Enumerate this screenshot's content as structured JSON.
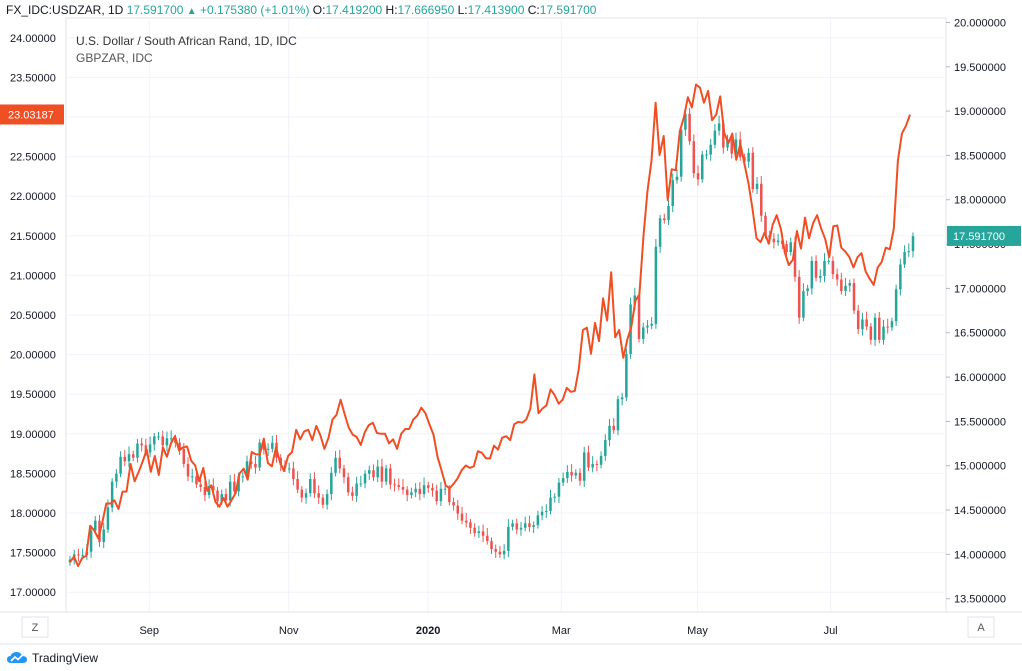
{
  "header": {
    "symbol": "FX_IDC:USDZAR, 1D",
    "last": "17.591700",
    "change": "+0.175380 (+1.01%)",
    "o_label": "O:",
    "o_val": "17.419200",
    "h_label": "H:",
    "h_val": "17.666950",
    "l_label": "L:",
    "l_val": "17.413900",
    "c_label": "C:",
    "c_val": "17.591700"
  },
  "legend": {
    "line1": "U.S. Dollar / South African Rand, 1D, IDC",
    "line2": "GBPZAR, IDC"
  },
  "footer": {
    "brand": "TradingView"
  },
  "buttons": {
    "left": "Z",
    "right": "A"
  },
  "chart_data": {
    "type": "line",
    "series": [
      {
        "name": "GBPZAR",
        "axis": "left",
        "color": "#f04e23",
        "values": [
          17.38,
          17.45,
          17.33,
          17.43,
          17.46,
          17.84,
          17.78,
          17.68,
          17.88,
          18.12,
          18.12,
          18.16,
          18.05,
          18.27,
          18.27,
          18.62,
          18.4,
          18.52,
          18.65,
          18.8,
          18.52,
          18.72,
          18.48,
          18.83,
          18.71,
          18.88,
          18.97,
          18.79,
          18.83,
          18.84,
          18.66,
          18.6,
          18.4,
          18.57,
          18.28,
          18.35,
          18.14,
          18.08,
          18.19,
          18.08,
          18.16,
          18.25,
          18.5,
          18.56,
          18.42,
          18.77,
          18.74,
          18.74,
          18.94,
          18.63,
          18.59,
          18.83,
          18.64,
          18.53,
          18.72,
          18.77,
          19.05,
          18.93,
          19.03,
          19.05,
          18.92,
          19.1,
          18.98,
          18.81,
          18.95,
          19.18,
          19.24,
          19.43,
          19.25,
          19.08,
          18.99,
          18.96,
          18.86,
          19.02,
          19.11,
          19.14,
          19.01,
          19.0,
          19.0,
          18.88,
          18.93,
          18.81,
          19.0,
          19.06,
          19.06,
          19.18,
          19.23,
          19.33,
          19.26,
          19.12,
          18.99,
          18.71,
          18.54,
          18.35,
          18.31,
          18.37,
          18.44,
          18.54,
          18.6,
          18.57,
          18.59,
          18.78,
          18.76,
          18.69,
          18.69,
          18.85,
          18.8,
          18.95,
          18.97,
          18.92,
          19.12,
          19.15,
          19.14,
          19.18,
          19.32,
          19.75,
          19.26,
          19.32,
          19.36,
          19.56,
          19.49,
          19.38,
          19.43,
          19.58,
          19.53,
          19.54,
          19.82,
          20.31,
          20.34,
          20.01,
          20.4,
          20.17,
          20.71,
          20.43,
          21.04,
          20.22,
          20.31,
          19.96,
          20.19,
          20.35,
          20.68,
          20.76,
          21.5,
          22.07,
          22.45,
          23.18,
          22.52,
          22.76,
          21.95,
          22.34,
          22.33,
          22.82,
          22.99,
          23.25,
          23.12,
          23.41,
          23.37,
          23.18,
          23.33,
          22.96,
          23.03,
          23.26,
          22.8,
          22.67,
          22.79,
          22.46,
          22.66,
          22.41,
          22.16,
          21.84,
          21.47,
          21.42,
          21.54,
          21.4,
          21.64,
          21.76,
          21.59,
          21.29,
          21.13,
          21.2,
          21.56,
          21.34,
          21.73,
          21.47,
          21.66,
          21.76,
          21.59,
          21.46,
          21.23,
          21.62,
          21.63,
          21.35,
          21.3,
          21.23,
          21.1,
          21.23,
          21.28,
          21.05,
          20.96,
          20.88,
          21.1,
          21.17,
          21.35,
          21.33,
          21.59,
          22.45,
          22.79,
          22.89,
          23.03
        ],
        "start": "2019-07-29",
        "end": "2020-08-07"
      },
      {
        "name": "USDZAR",
        "axis": "right",
        "type": "candlestick",
        "color_up": "#26a69a",
        "color_down": "#ef5350",
        "closes": [
          13.94,
          14.0,
          13.99,
          13.99,
          14.03,
          14.27,
          14.38,
          14.14,
          14.28,
          14.53,
          14.82,
          14.91,
          15.1,
          15.05,
          15.13,
          15.09,
          15.25,
          15.23,
          15.15,
          15.24,
          15.33,
          15.33,
          15.23,
          15.31,
          15.31,
          15.26,
          15.19,
          15.02,
          14.88,
          14.88,
          14.79,
          14.76,
          14.67,
          14.77,
          14.72,
          14.6,
          14.68,
          14.61,
          14.82,
          14.71,
          14.88,
          14.88,
          15.05,
          15.02,
          14.98,
          15.26,
          15.18,
          15.19,
          15.26,
          15.09,
          15.01,
          14.97,
          14.97,
          14.85,
          14.73,
          14.64,
          14.69,
          14.85,
          14.69,
          14.64,
          14.56,
          14.68,
          14.92,
          15.09,
          14.97,
          14.87,
          14.7,
          14.66,
          14.8,
          14.8,
          14.91,
          14.95,
          14.87,
          14.99,
          14.82,
          14.97,
          14.79,
          14.78,
          14.76,
          14.73,
          14.67,
          14.7,
          14.74,
          14.68,
          14.78,
          14.75,
          14.72,
          14.6,
          14.74,
          14.74,
          14.59,
          14.55,
          14.46,
          14.38,
          14.36,
          14.3,
          14.24,
          14.26,
          14.21,
          14.15,
          14.06,
          14.03,
          14.0,
          14.04,
          14.31,
          14.35,
          14.28,
          14.3,
          14.35,
          14.31,
          14.33,
          14.44,
          14.48,
          14.49,
          14.64,
          14.65,
          14.81,
          14.86,
          14.93,
          14.89,
          14.92,
          14.83,
          15.15,
          14.98,
          15.02,
          15.01,
          15.11,
          15.29,
          15.45,
          15.4,
          15.75,
          15.77,
          16.26,
          16.82,
          16.92,
          16.43,
          16.56,
          16.58,
          16.6,
          17.47,
          17.79,
          17.77,
          17.93,
          18.22,
          18.26,
          18.79,
          18.97,
          18.66,
          18.3,
          18.23,
          18.51,
          18.51,
          18.62,
          18.78,
          18.86,
          18.59,
          18.68,
          18.52,
          18.68,
          18.48,
          18.43,
          18.53,
          18.12,
          18.18,
          17.82,
          17.6,
          17.56,
          17.52,
          17.54,
          17.5,
          17.41,
          17.52,
          17.13,
          16.67,
          16.97,
          17.0,
          17.31,
          17.12,
          17.14,
          17.31,
          17.31,
          17.16,
          17.1,
          16.97,
          17.03,
          17.06,
          16.75,
          16.54,
          16.65,
          16.57,
          16.42,
          16.67,
          16.42,
          16.57,
          16.56,
          16.63,
          16.99,
          17.27,
          17.41,
          17.42,
          17.59
        ]
      }
    ],
    "x_ticks": [
      "Sep",
      "Nov",
      "2020",
      "Mar",
      "May",
      "Jul"
    ],
    "left_axis": {
      "ylim": [
        16.75,
        24.25
      ],
      "ticks": [
        "17.00000",
        "17.50000",
        "18.00000",
        "18.50000",
        "19.00000",
        "19.50000",
        "20.00000",
        "20.50000",
        "21.00000",
        "21.50000",
        "22.00000",
        "22.50000",
        "23.00000",
        "23.50000",
        "24.00000"
      ],
      "last_label": "23.03187"
    },
    "right_axis": {
      "ylim": [
        13.35,
        20.05
      ],
      "ticks": [
        "13.500000",
        "14.000000",
        "14.500000",
        "15.000000",
        "15.500000",
        "16.000000",
        "16.500000",
        "17.000000",
        "17.500000",
        "18.000000",
        "18.500000",
        "19.000000",
        "19.500000",
        "20.000000"
      ],
      "last_label": "17.591700"
    },
    "grid": true
  }
}
